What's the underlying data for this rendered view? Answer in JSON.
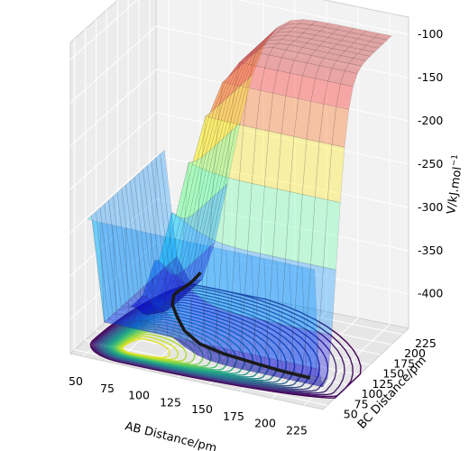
{
  "chart_data": {
    "type": "3d-surface",
    "colormap_surface": "jet",
    "colormap_contours": "viridis",
    "xlabel": "AB Distance/pm",
    "ylabel": "BC Distance/pm",
    "zlabel": "V/kJ.mol$^{-1}$",
    "x_ticks": [
      "50",
      "75",
      "100",
      "125",
      "150",
      "175",
      "200",
      "225"
    ],
    "y_ticks": [
      "50",
      "75",
      "100",
      "125",
      "150",
      "175",
      "200",
      "225"
    ],
    "z_ticks": [
      "-100",
      "-150",
      "-200",
      "-250",
      "-300",
      "-350",
      "-400"
    ],
    "xlim": [
      40,
      240
    ],
    "ylim": [
      40,
      240
    ],
    "zlim": [
      -440,
      -80
    ],
    "grid": true,
    "surface": {
      "description_levels_z": [
        -90,
        -150,
        -200,
        -250,
        -300,
        -350,
        -400,
        -430
      ],
      "plateau_z": -100,
      "well_min_z": -435
    },
    "trajectory": {
      "color": "#1a1a1a",
      "points_xyz": [
        [
          78,
          232,
          -420
        ],
        [
          80,
          215,
          -418
        ],
        [
          82,
          195,
          -415
        ],
        [
          84,
          175,
          -410
        ],
        [
          86,
          155,
          -405
        ],
        [
          88,
          140,
          -402
        ],
        [
          92,
          125,
          -405
        ],
        [
          100,
          112,
          -410
        ],
        [
          110,
          100,
          -418
        ],
        [
          125,
          92,
          -425
        ],
        [
          145,
          88,
          -428
        ],
        [
          170,
          86,
          -430
        ],
        [
          195,
          85,
          -432
        ],
        [
          215,
          84,
          -432
        ]
      ]
    },
    "contour_levels": 24
  }
}
